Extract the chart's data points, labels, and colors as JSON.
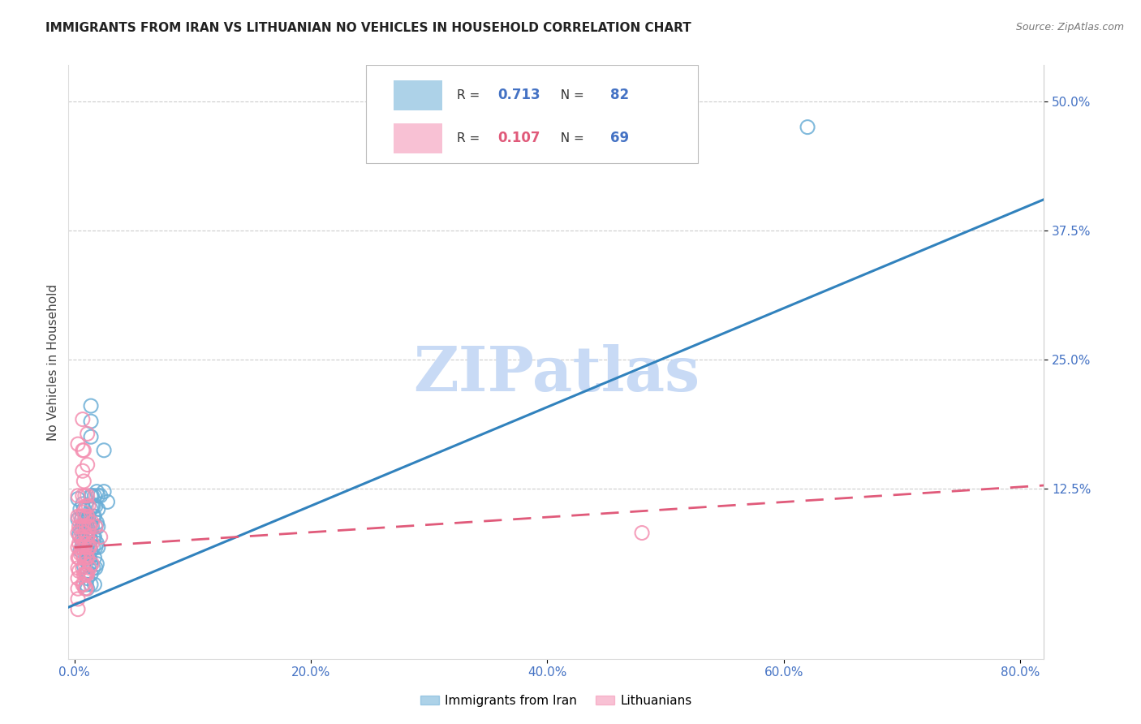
{
  "title": "IMMIGRANTS FROM IRAN VS LITHUANIAN NO VEHICLES IN HOUSEHOLD CORRELATION CHART",
  "source": "Source: ZipAtlas.com",
  "ylabel": "No Vehicles in Household",
  "x_tick_labels": [
    "0.0%",
    "20.0%",
    "40.0%",
    "60.0%",
    "80.0%"
  ],
  "x_tick_values": [
    0.0,
    0.2,
    0.4,
    0.6,
    0.8
  ],
  "y_tick_labels": [
    "50.0%",
    "37.5%",
    "25.0%",
    "12.5%"
  ],
  "y_tick_values": [
    0.5,
    0.375,
    0.25,
    0.125
  ],
  "xlim": [
    -0.005,
    0.82
  ],
  "ylim": [
    -0.04,
    0.535
  ],
  "blue_R": "0.713",
  "blue_N": "82",
  "pink_R": "0.107",
  "pink_N": "69",
  "blue_color": "#6baed6",
  "pink_color": "#f48fb1",
  "blue_line_color": "#3182bd",
  "pink_line_color": "#e05a7a",
  "watermark": "ZIPatlas",
  "watermark_color": "#c8daf5",
  "legend_label_blue": "Immigrants from Iran",
  "legend_label_pink": "Lithuanians",
  "tick_color": "#4472c4",
  "blue_scatter": [
    [
      0.003,
      0.115
    ],
    [
      0.003,
      0.095
    ],
    [
      0.004,
      0.08
    ],
    [
      0.005,
      0.105
    ],
    [
      0.005,
      0.085
    ],
    [
      0.005,
      0.065
    ],
    [
      0.006,
      0.095
    ],
    [
      0.006,
      0.075
    ],
    [
      0.007,
      0.11
    ],
    [
      0.007,
      0.085
    ],
    [
      0.008,
      0.105
    ],
    [
      0.008,
      0.09
    ],
    [
      0.008,
      0.075
    ],
    [
      0.008,
      0.065
    ],
    [
      0.008,
      0.05
    ],
    [
      0.009,
      0.095
    ],
    [
      0.009,
      0.08
    ],
    [
      0.009,
      0.068
    ],
    [
      0.01,
      0.09
    ],
    [
      0.01,
      0.078
    ],
    [
      0.01,
      0.065
    ],
    [
      0.01,
      0.055
    ],
    [
      0.01,
      0.042
    ],
    [
      0.01,
      0.032
    ],
    [
      0.011,
      0.095
    ],
    [
      0.011,
      0.085
    ],
    [
      0.011,
      0.078
    ],
    [
      0.011,
      0.065
    ],
    [
      0.011,
      0.058
    ],
    [
      0.011,
      0.045
    ],
    [
      0.011,
      0.038
    ],
    [
      0.011,
      0.028
    ],
    [
      0.012,
      0.098
    ],
    [
      0.012,
      0.085
    ],
    [
      0.012,
      0.072
    ],
    [
      0.012,
      0.062
    ],
    [
      0.012,
      0.05
    ],
    [
      0.013,
      0.09
    ],
    [
      0.013,
      0.078
    ],
    [
      0.013,
      0.068
    ],
    [
      0.013,
      0.058
    ],
    [
      0.014,
      0.205
    ],
    [
      0.014,
      0.19
    ],
    [
      0.014,
      0.175
    ],
    [
      0.014,
      0.118
    ],
    [
      0.014,
      0.105
    ],
    [
      0.014,
      0.09
    ],
    [
      0.014,
      0.075
    ],
    [
      0.014,
      0.065
    ],
    [
      0.014,
      0.052
    ],
    [
      0.014,
      0.042
    ],
    [
      0.014,
      0.032
    ],
    [
      0.015,
      0.118
    ],
    [
      0.015,
      0.108
    ],
    [
      0.015,
      0.088
    ],
    [
      0.016,
      0.108
    ],
    [
      0.016,
      0.098
    ],
    [
      0.016,
      0.078
    ],
    [
      0.016,
      0.068
    ],
    [
      0.016,
      0.048
    ],
    [
      0.017,
      0.118
    ],
    [
      0.017,
      0.098
    ],
    [
      0.017,
      0.078
    ],
    [
      0.017,
      0.058
    ],
    [
      0.017,
      0.032
    ],
    [
      0.018,
      0.108
    ],
    [
      0.018,
      0.088
    ],
    [
      0.018,
      0.068
    ],
    [
      0.018,
      0.048
    ],
    [
      0.019,
      0.122
    ],
    [
      0.019,
      0.092
    ],
    [
      0.019,
      0.072
    ],
    [
      0.019,
      0.052
    ],
    [
      0.02,
      0.118
    ],
    [
      0.02,
      0.105
    ],
    [
      0.02,
      0.088
    ],
    [
      0.02,
      0.068
    ],
    [
      0.022,
      0.118
    ],
    [
      0.025,
      0.162
    ],
    [
      0.025,
      0.122
    ],
    [
      0.028,
      0.112
    ],
    [
      0.62,
      0.475
    ]
  ],
  "pink_scatter": [
    [
      0.003,
      0.168
    ],
    [
      0.003,
      0.118
    ],
    [
      0.003,
      0.098
    ],
    [
      0.003,
      0.082
    ],
    [
      0.003,
      0.068
    ],
    [
      0.003,
      0.058
    ],
    [
      0.003,
      0.048
    ],
    [
      0.003,
      0.038
    ],
    [
      0.003,
      0.028
    ],
    [
      0.003,
      0.018
    ],
    [
      0.003,
      0.008
    ],
    [
      0.004,
      0.088
    ],
    [
      0.004,
      0.072
    ],
    [
      0.004,
      0.058
    ],
    [
      0.004,
      0.045
    ],
    [
      0.005,
      0.098
    ],
    [
      0.005,
      0.078
    ],
    [
      0.005,
      0.062
    ],
    [
      0.006,
      0.088
    ],
    [
      0.006,
      0.068
    ],
    [
      0.007,
      0.192
    ],
    [
      0.007,
      0.162
    ],
    [
      0.007,
      0.142
    ],
    [
      0.007,
      0.118
    ],
    [
      0.007,
      0.098
    ],
    [
      0.007,
      0.078
    ],
    [
      0.007,
      0.062
    ],
    [
      0.007,
      0.048
    ],
    [
      0.007,
      0.032
    ],
    [
      0.008,
      0.162
    ],
    [
      0.008,
      0.132
    ],
    [
      0.008,
      0.102
    ],
    [
      0.008,
      0.088
    ],
    [
      0.008,
      0.072
    ],
    [
      0.008,
      0.058
    ],
    [
      0.008,
      0.042
    ],
    [
      0.008,
      0.032
    ],
    [
      0.009,
      0.118
    ],
    [
      0.009,
      0.098
    ],
    [
      0.009,
      0.082
    ],
    [
      0.009,
      0.068
    ],
    [
      0.009,
      0.052
    ],
    [
      0.009,
      0.042
    ],
    [
      0.009,
      0.028
    ],
    [
      0.01,
      0.108
    ],
    [
      0.01,
      0.088
    ],
    [
      0.01,
      0.072
    ],
    [
      0.01,
      0.058
    ],
    [
      0.01,
      0.042
    ],
    [
      0.01,
      0.028
    ],
    [
      0.011,
      0.178
    ],
    [
      0.011,
      0.148
    ],
    [
      0.011,
      0.118
    ],
    [
      0.011,
      0.098
    ],
    [
      0.011,
      0.078
    ],
    [
      0.011,
      0.058
    ],
    [
      0.011,
      0.042
    ],
    [
      0.012,
      0.108
    ],
    [
      0.012,
      0.088
    ],
    [
      0.012,
      0.068
    ],
    [
      0.013,
      0.088
    ],
    [
      0.013,
      0.068
    ],
    [
      0.013,
      0.048
    ],
    [
      0.015,
      0.092
    ],
    [
      0.015,
      0.072
    ],
    [
      0.015,
      0.052
    ],
    [
      0.018,
      0.088
    ],
    [
      0.022,
      0.078
    ],
    [
      0.48,
      0.082
    ]
  ],
  "blue_line_x": [
    -0.005,
    0.82
  ],
  "blue_line_y_start": 0.01,
  "blue_line_y_end": 0.405,
  "pink_line_x": [
    0.0,
    0.82
  ],
  "pink_line_y_start": 0.068,
  "pink_line_y_end": 0.128
}
